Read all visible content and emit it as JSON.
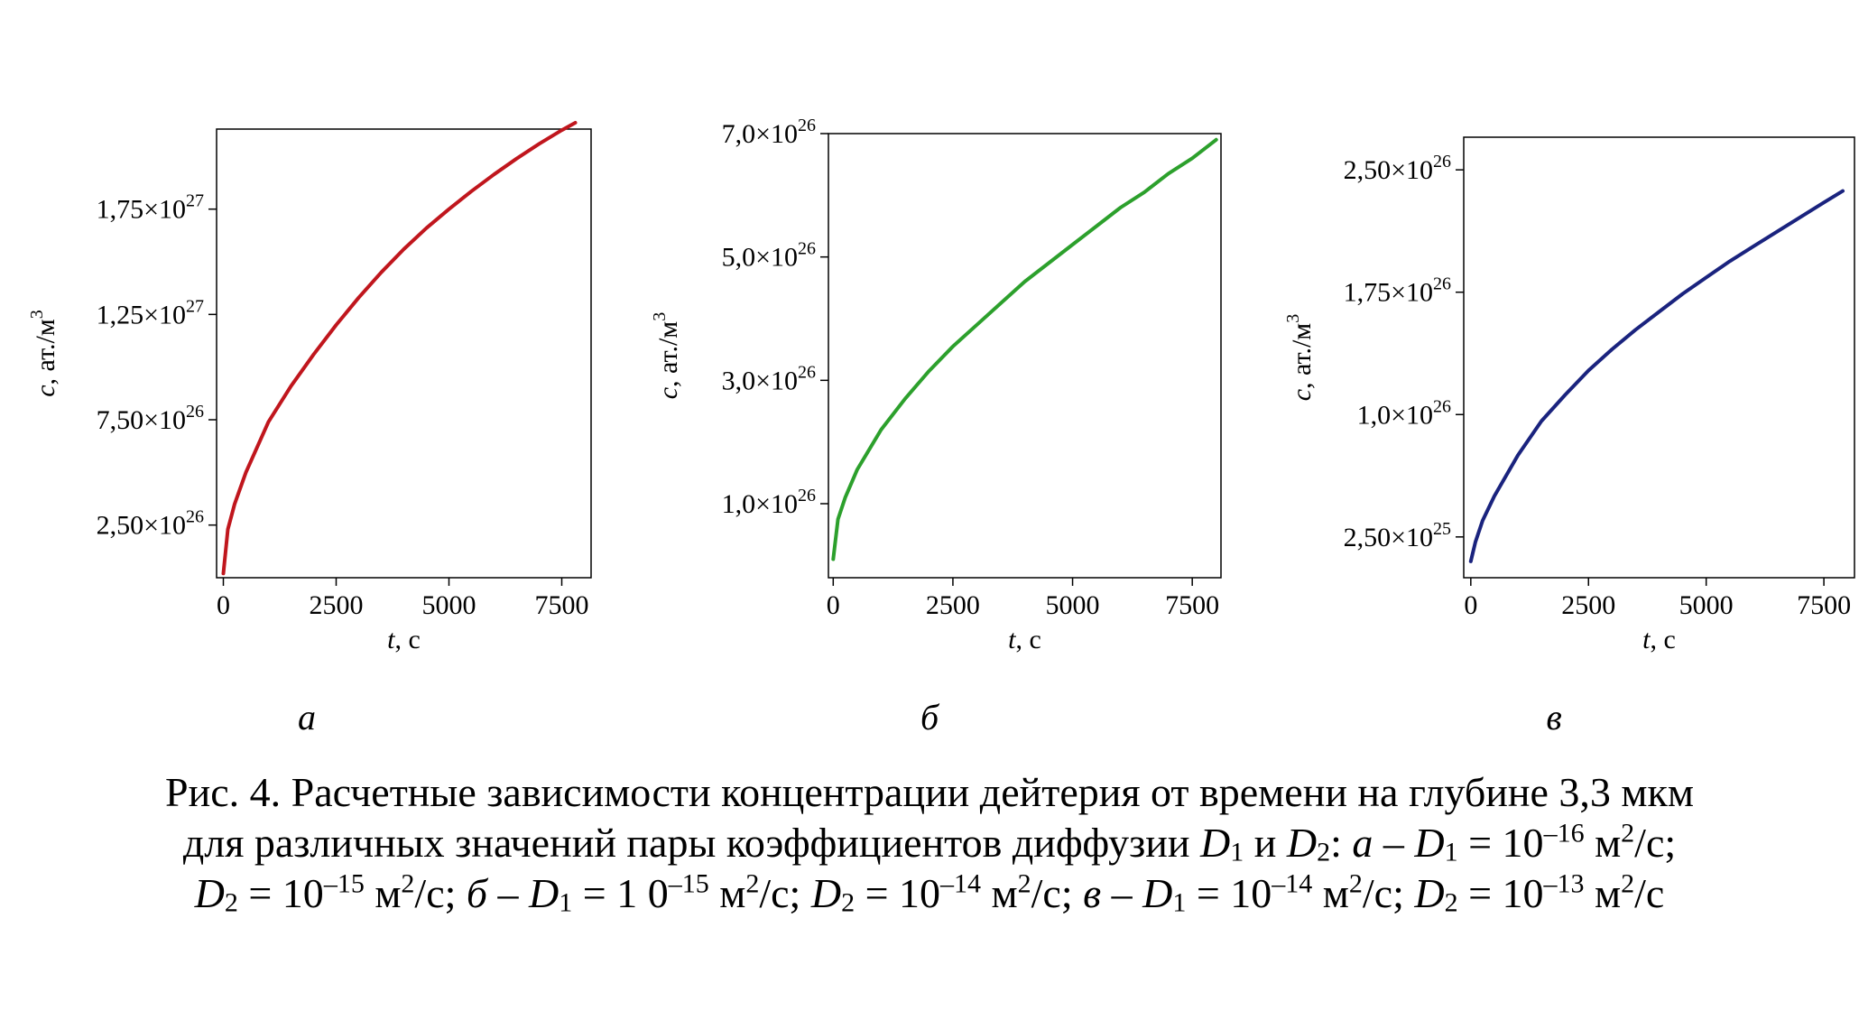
{
  "chart_data": [
    {
      "type": "line",
      "panel_label": "а",
      "xlabel_var": "t",
      "xlabel_unit": ", с",
      "ylabel_var": "c",
      "ylabel_unit": ", ат./м",
      "ylabel_unit_exp": "3",
      "xlim": [
        -150,
        8150
      ],
      "ylim": [
        0,
        2.13e+27
      ],
      "xticks": [
        {
          "value": 0,
          "label": "0"
        },
        {
          "value": 2500,
          "label": "2500"
        },
        {
          "value": 5000,
          "label": "5000"
        },
        {
          "value": 7500,
          "label": "7500"
        }
      ],
      "yticks": [
        {
          "value": 2.5e+26,
          "mant": "2,50",
          "exp": "26"
        },
        {
          "value": 7.5e+26,
          "mant": "7,50",
          "exp": "26"
        },
        {
          "value": 1.25e+27,
          "mant": "1,25",
          "exp": "27"
        },
        {
          "value": 1.75e+27,
          "mant": "1,75",
          "exp": "27"
        }
      ],
      "series": [
        {
          "color": "#c0161d",
          "x": [
            0,
            100,
            250,
            500,
            1000,
            1500,
            2000,
            2500,
            3000,
            3500,
            4000,
            4500,
            5000,
            5500,
            6000,
            6500,
            7000,
            7500,
            7800
          ],
          "y": [
            2e+25,
            2.3e+26,
            3.5e+26,
            5e+26,
            7.4e+26,
            9.1e+26,
            1.06e+27,
            1.2e+27,
            1.33e+27,
            1.45e+27,
            1.56e+27,
            1.66e+27,
            1.75e+27,
            1.835e+27,
            1.915e+27,
            1.99e+27,
            2.06e+27,
            2.125e+27,
            2.16e+27
          ]
        }
      ]
    },
    {
      "type": "line",
      "panel_label": "б",
      "xlabel_var": "t",
      "xlabel_unit": ", с",
      "ylabel_var": "c",
      "ylabel_unit": ", ат./м",
      "ylabel_unit_exp": "3",
      "xlim": [
        -100,
        8100
      ],
      "ylim": [
        -2e+25,
        7e+26
      ],
      "xticks": [
        {
          "value": 0,
          "label": "0"
        },
        {
          "value": 2500,
          "label": "2500"
        },
        {
          "value": 5000,
          "label": "5000"
        },
        {
          "value": 7500,
          "label": "7500"
        }
      ],
      "yticks": [
        {
          "value": 1e+26,
          "mant": "1,0",
          "exp": "26"
        },
        {
          "value": 3e+26,
          "mant": "3,0",
          "exp": "26"
        },
        {
          "value": 5e+26,
          "mant": "5,0",
          "exp": "26"
        },
        {
          "value": 7e+26,
          "mant": "7,0",
          "exp": "26"
        }
      ],
      "series": [
        {
          "color": "#2ca02c",
          "x": [
            0,
            100,
            250,
            500,
            1000,
            1500,
            2000,
            2500,
            3000,
            3500,
            4000,
            4500,
            5000,
            5500,
            6000,
            6500,
            7000,
            7500,
            8000
          ],
          "y": [
            1e+25,
            7.5e+25,
            1.1e+26,
            1.55e+26,
            2.2e+26,
            2.7e+26,
            3.15e+26,
            3.55e+26,
            3.9e+26,
            4.25e+26,
            4.6e+26,
            4.9e+26,
            5.2e+26,
            5.5e+26,
            5.8e+26,
            6.05e+26,
            6.35e+26,
            6.6e+26,
            6.9e+26
          ]
        }
      ]
    },
    {
      "type": "line",
      "panel_label": "в",
      "xlabel_var": "t",
      "xlabel_unit": ", с",
      "ylabel_var": "c",
      "ylabel_unit": ", ат./м",
      "ylabel_unit_exp": "3",
      "xlim": [
        -150,
        8150
      ],
      "ylim": [
        0,
        2.7e+26
      ],
      "xticks": [
        {
          "value": 0,
          "label": "0"
        },
        {
          "value": 2500,
          "label": "2500"
        },
        {
          "value": 5000,
          "label": "5000"
        },
        {
          "value": 7500,
          "label": "7500"
        }
      ],
      "yticks": [
        {
          "value": 2.5e+25,
          "mant": "2,50",
          "exp": "25"
        },
        {
          "value": 1e+26,
          "mant": "1,0",
          "exp": "26"
        },
        {
          "value": 1.75e+26,
          "mant": "1,75",
          "exp": "26"
        },
        {
          "value": 2.5e+26,
          "mant": "2,50",
          "exp": "26"
        }
      ],
      "series": [
        {
          "color": "#1a237e",
          "x": [
            0,
            100,
            250,
            500,
            1000,
            1500,
            2000,
            2500,
            3000,
            3500,
            4000,
            4500,
            5000,
            5500,
            6000,
            6500,
            7000,
            7500,
            7900
          ],
          "y": [
            1e+25,
            2.2e+25,
            3.5e+25,
            5e+25,
            7.5e+25,
            9.6e+25,
            1.12e+26,
            1.27e+26,
            1.4e+26,
            1.52e+26,
            1.63e+26,
            1.74e+26,
            1.84e+26,
            1.94e+26,
            2.03e+26,
            2.12e+26,
            2.21e+26,
            2.3e+26,
            2.37e+26
          ]
        }
      ]
    }
  ],
  "caption": {
    "line1": "Рис. 4. Расчетные зависимости концентрации дейтерия от времени на глубине 3,3 мкм",
    "line2_a": "для различных значений пары коэффициентов диффузии ",
    "D": "D",
    "sub1": "1",
    "sub2": "2",
    "and": " и ",
    "colon": ": ",
    "panel_a": "а",
    "panel_b": "б",
    "panel_v": "в",
    "dash": " – ",
    "eq_ten": " = 10",
    "eq_ten_spaced": " = 1 0",
    "exp16": "–16",
    "exp15": "–15",
    "exp14": "–14",
    "exp13": "–13",
    "unit_m": " м",
    "unit_exp": "2",
    "unit_s": "/с",
    "semi": "; "
  }
}
